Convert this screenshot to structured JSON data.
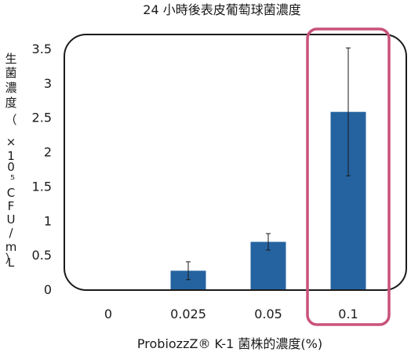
{
  "chart_data": {
    "type": "bar",
    "title": "24 小時後表皮葡萄球菌濃度",
    "xlabel": "ProbiozzZ® K-1 菌株的濃度(%)",
    "ylabel": "生菌濃度（×10⁵CFU/mL）",
    "categories": [
      "0",
      "0.025",
      "0.05",
      "0.1"
    ],
    "values": [
      0,
      0.27,
      0.69,
      2.58
    ],
    "error": [
      0,
      0.13,
      0.12,
      0.93
    ],
    "ylim": [
      0,
      3.5
    ],
    "yticks": [
      "0",
      "0.5",
      "1",
      "1.5",
      "2",
      "2.5",
      "3",
      "3.5"
    ],
    "grid": false,
    "highlight_category": "0.1",
    "colors": {
      "bar": "#2563a0",
      "highlight": "#c9527a",
      "frame": "#1a1a1a"
    }
  }
}
